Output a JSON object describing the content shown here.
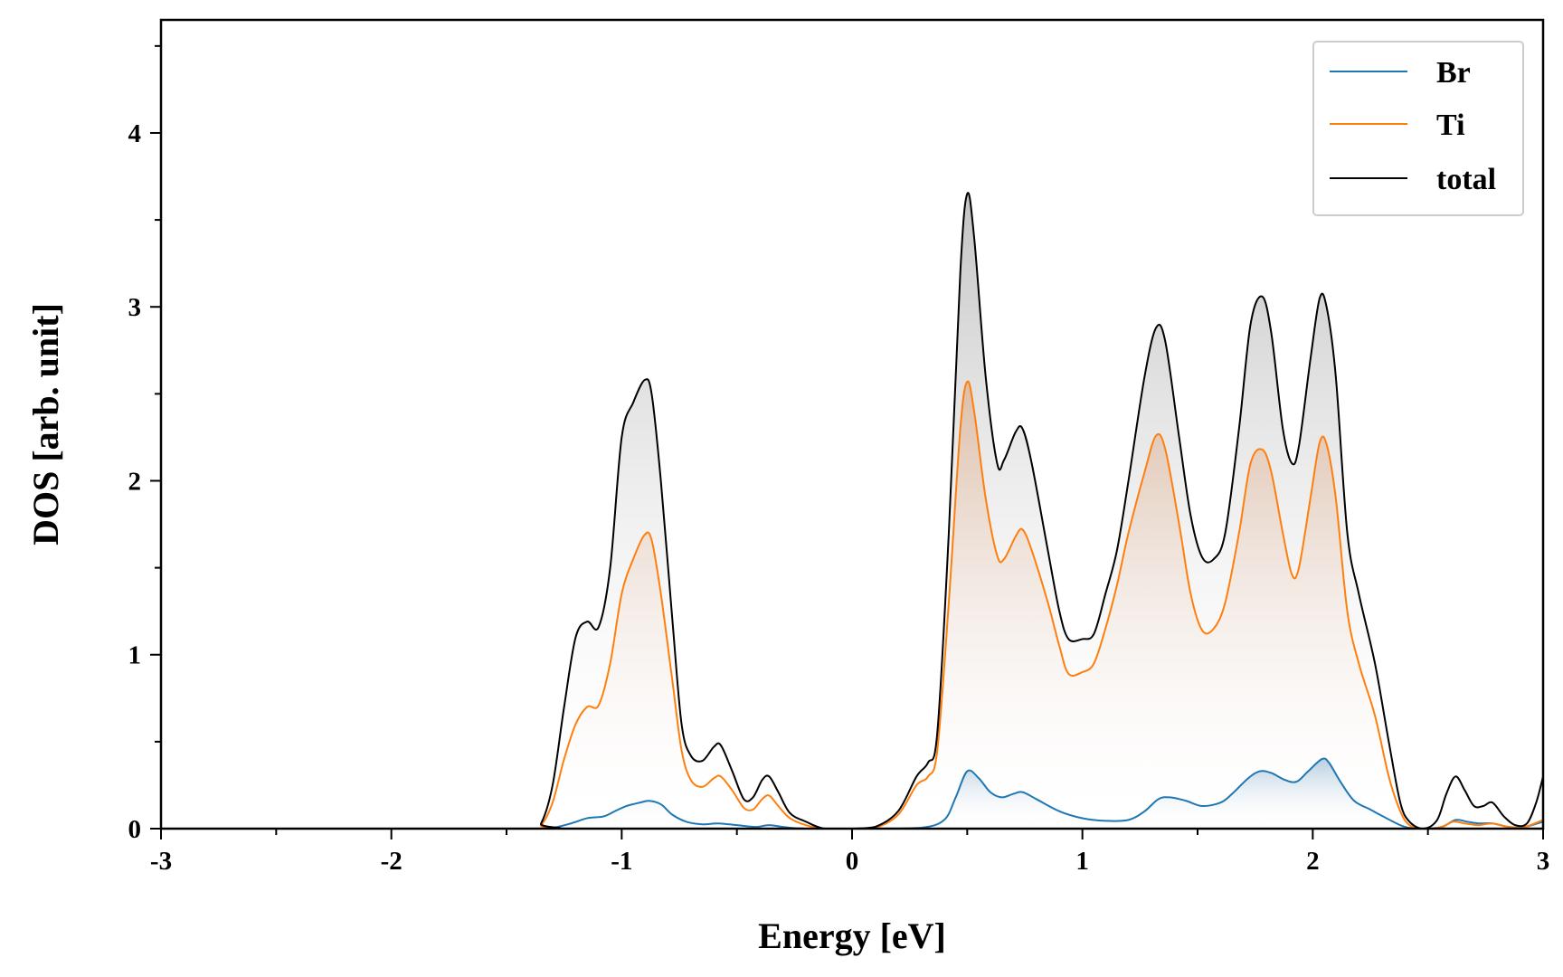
{
  "chart_data": {
    "type": "line",
    "xlabel": "Energy [eV]",
    "ylabel": "DOS [arb. unit]",
    "xlim": [
      -3,
      3
    ],
    "ylim": [
      0,
      4.65
    ],
    "x_ticks": [
      "-3",
      "-2",
      "-1",
      "0",
      "1",
      "2",
      "3"
    ],
    "y_ticks": [
      "0",
      "1",
      "2",
      "3",
      "4"
    ],
    "legend_position": "top-right",
    "grid": false,
    "filled": true,
    "series": [
      {
        "name": "Br",
        "color": "#1f77b4",
        "points": [
          [
            -3.0,
            0.0
          ],
          [
            -1.4,
            0.0
          ],
          [
            -1.3,
            0.005
          ],
          [
            -1.22,
            0.03
          ],
          [
            -1.15,
            0.06
          ],
          [
            -1.08,
            0.07
          ],
          [
            -1.03,
            0.1
          ],
          [
            -0.98,
            0.13
          ],
          [
            -0.92,
            0.15
          ],
          [
            -0.88,
            0.16
          ],
          [
            -0.83,
            0.14
          ],
          [
            -0.78,
            0.08
          ],
          [
            -0.72,
            0.04
          ],
          [
            -0.65,
            0.025
          ],
          [
            -0.58,
            0.03
          ],
          [
            -0.5,
            0.02
          ],
          [
            -0.42,
            0.01
          ],
          [
            -0.36,
            0.02
          ],
          [
            -0.3,
            0.01
          ],
          [
            -0.2,
            0.0
          ],
          [
            0.1,
            0.0
          ],
          [
            0.3,
            0.005
          ],
          [
            0.4,
            0.05
          ],
          [
            0.45,
            0.18
          ],
          [
            0.5,
            0.33
          ],
          [
            0.55,
            0.29
          ],
          [
            0.6,
            0.21
          ],
          [
            0.65,
            0.18
          ],
          [
            0.7,
            0.2
          ],
          [
            0.74,
            0.21
          ],
          [
            0.8,
            0.17
          ],
          [
            0.9,
            0.1
          ],
          [
            1.0,
            0.06
          ],
          [
            1.1,
            0.045
          ],
          [
            1.2,
            0.05
          ],
          [
            1.27,
            0.1
          ],
          [
            1.33,
            0.17
          ],
          [
            1.38,
            0.18
          ],
          [
            1.45,
            0.16
          ],
          [
            1.52,
            0.13
          ],
          [
            1.6,
            0.15
          ],
          [
            1.65,
            0.2
          ],
          [
            1.72,
            0.29
          ],
          [
            1.77,
            0.33
          ],
          [
            1.82,
            0.32
          ],
          [
            1.88,
            0.28
          ],
          [
            1.93,
            0.27
          ],
          [
            1.98,
            0.33
          ],
          [
            2.04,
            0.4
          ],
          [
            2.07,
            0.38
          ],
          [
            2.12,
            0.27
          ],
          [
            2.18,
            0.16
          ],
          [
            2.25,
            0.11
          ],
          [
            2.32,
            0.06
          ],
          [
            2.4,
            0.01
          ],
          [
            2.48,
            0.0
          ],
          [
            2.56,
            0.01
          ],
          [
            2.62,
            0.05
          ],
          [
            2.67,
            0.04
          ],
          [
            2.72,
            0.03
          ],
          [
            2.78,
            0.03
          ],
          [
            2.85,
            0.01
          ],
          [
            2.92,
            0.01
          ],
          [
            3.0,
            0.04
          ]
        ]
      },
      {
        "name": "Ti",
        "color": "#ff7f0e",
        "points": [
          [
            -3.0,
            0.0
          ],
          [
            -1.4,
            0.0
          ],
          [
            -1.35,
            0.02
          ],
          [
            -1.3,
            0.15
          ],
          [
            -1.25,
            0.4
          ],
          [
            -1.2,
            0.6
          ],
          [
            -1.15,
            0.7
          ],
          [
            -1.1,
            0.71
          ],
          [
            -1.05,
            0.95
          ],
          [
            -1.0,
            1.35
          ],
          [
            -0.95,
            1.55
          ],
          [
            -0.9,
            1.69
          ],
          [
            -0.87,
            1.66
          ],
          [
            -0.83,
            1.35
          ],
          [
            -0.78,
            0.85
          ],
          [
            -0.74,
            0.45
          ],
          [
            -0.7,
            0.28
          ],
          [
            -0.65,
            0.24
          ],
          [
            -0.6,
            0.29
          ],
          [
            -0.57,
            0.3
          ],
          [
            -0.52,
            0.22
          ],
          [
            -0.47,
            0.12
          ],
          [
            -0.43,
            0.11
          ],
          [
            -0.39,
            0.17
          ],
          [
            -0.36,
            0.19
          ],
          [
            -0.32,
            0.13
          ],
          [
            -0.27,
            0.06
          ],
          [
            -0.2,
            0.02
          ],
          [
            -0.12,
            0.0
          ],
          [
            0.0,
            0.0
          ],
          [
            0.1,
            0.005
          ],
          [
            0.2,
            0.08
          ],
          [
            0.28,
            0.25
          ],
          [
            0.33,
            0.3
          ],
          [
            0.37,
            0.45
          ],
          [
            0.42,
            1.3
          ],
          [
            0.47,
            2.3
          ],
          [
            0.5,
            2.57
          ],
          [
            0.53,
            2.4
          ],
          [
            0.58,
            1.9
          ],
          [
            0.63,
            1.57
          ],
          [
            0.66,
            1.55
          ],
          [
            0.71,
            1.68
          ],
          [
            0.74,
            1.72
          ],
          [
            0.78,
            1.6
          ],
          [
            0.85,
            1.3
          ],
          [
            0.9,
            1.05
          ],
          [
            0.94,
            0.89
          ],
          [
            1.0,
            0.9
          ],
          [
            1.05,
            0.95
          ],
          [
            1.1,
            1.15
          ],
          [
            1.15,
            1.4
          ],
          [
            1.2,
            1.7
          ],
          [
            1.27,
            2.05
          ],
          [
            1.32,
            2.26
          ],
          [
            1.36,
            2.18
          ],
          [
            1.42,
            1.75
          ],
          [
            1.47,
            1.35
          ],
          [
            1.52,
            1.14
          ],
          [
            1.57,
            1.15
          ],
          [
            1.62,
            1.3
          ],
          [
            1.68,
            1.7
          ],
          [
            1.73,
            2.1
          ],
          [
            1.78,
            2.18
          ],
          [
            1.82,
            2.05
          ],
          [
            1.87,
            1.7
          ],
          [
            1.91,
            1.46
          ],
          [
            1.94,
            1.5
          ],
          [
            1.99,
            1.9
          ],
          [
            2.03,
            2.22
          ],
          [
            2.06,
            2.21
          ],
          [
            2.1,
            1.9
          ],
          [
            2.15,
            1.25
          ],
          [
            2.2,
            0.95
          ],
          [
            2.27,
            0.65
          ],
          [
            2.33,
            0.3
          ],
          [
            2.38,
            0.1
          ],
          [
            2.42,
            0.02
          ],
          [
            2.48,
            0.0
          ],
          [
            2.56,
            0.01
          ],
          [
            2.61,
            0.04
          ],
          [
            2.66,
            0.03
          ],
          [
            2.72,
            0.02
          ],
          [
            2.78,
            0.03
          ],
          [
            2.85,
            0.01
          ],
          [
            2.92,
            0.01
          ],
          [
            3.0,
            0.05
          ]
        ]
      },
      {
        "name": "total",
        "color": "#000000",
        "points": [
          [
            -3.0,
            0.0
          ],
          [
            -1.4,
            0.0
          ],
          [
            -1.35,
            0.03
          ],
          [
            -1.3,
            0.25
          ],
          [
            -1.25,
            0.7
          ],
          [
            -1.2,
            1.1
          ],
          [
            -1.15,
            1.19
          ],
          [
            -1.1,
            1.16
          ],
          [
            -1.05,
            1.5
          ],
          [
            -1.0,
            2.25
          ],
          [
            -0.95,
            2.45
          ],
          [
            -0.9,
            2.58
          ],
          [
            -0.87,
            2.5
          ],
          [
            -0.83,
            2.0
          ],
          [
            -0.78,
            1.2
          ],
          [
            -0.74,
            0.6
          ],
          [
            -0.7,
            0.42
          ],
          [
            -0.65,
            0.39
          ],
          [
            -0.6,
            0.47
          ],
          [
            -0.57,
            0.48
          ],
          [
            -0.52,
            0.33
          ],
          [
            -0.47,
            0.17
          ],
          [
            -0.43,
            0.18
          ],
          [
            -0.39,
            0.28
          ],
          [
            -0.36,
            0.3
          ],
          [
            -0.32,
            0.21
          ],
          [
            -0.27,
            0.09
          ],
          [
            -0.2,
            0.04
          ],
          [
            -0.12,
            0.0
          ],
          [
            0.0,
            0.0
          ],
          [
            0.1,
            0.01
          ],
          [
            0.2,
            0.1
          ],
          [
            0.28,
            0.3
          ],
          [
            0.33,
            0.38
          ],
          [
            0.37,
            0.55
          ],
          [
            0.42,
            1.7
          ],
          [
            0.47,
            3.2
          ],
          [
            0.5,
            3.65
          ],
          [
            0.53,
            3.4
          ],
          [
            0.58,
            2.6
          ],
          [
            0.63,
            2.1
          ],
          [
            0.66,
            2.12
          ],
          [
            0.71,
            2.28
          ],
          [
            0.74,
            2.3
          ],
          [
            0.78,
            2.1
          ],
          [
            0.85,
            1.6
          ],
          [
            0.9,
            1.25
          ],
          [
            0.94,
            1.09
          ],
          [
            1.0,
            1.09
          ],
          [
            1.05,
            1.12
          ],
          [
            1.1,
            1.35
          ],
          [
            1.15,
            1.6
          ],
          [
            1.2,
            2.0
          ],
          [
            1.27,
            2.6
          ],
          [
            1.32,
            2.88
          ],
          [
            1.36,
            2.8
          ],
          [
            1.42,
            2.25
          ],
          [
            1.47,
            1.8
          ],
          [
            1.52,
            1.56
          ],
          [
            1.57,
            1.55
          ],
          [
            1.62,
            1.7
          ],
          [
            1.68,
            2.3
          ],
          [
            1.73,
            2.9
          ],
          [
            1.78,
            3.06
          ],
          [
            1.82,
            2.85
          ],
          [
            1.87,
            2.3
          ],
          [
            1.91,
            2.1
          ],
          [
            1.94,
            2.2
          ],
          [
            1.99,
            2.7
          ],
          [
            2.03,
            3.05
          ],
          [
            2.06,
            3.0
          ],
          [
            2.1,
            2.6
          ],
          [
            2.15,
            1.7
          ],
          [
            2.2,
            1.35
          ],
          [
            2.27,
            0.95
          ],
          [
            2.33,
            0.5
          ],
          [
            2.38,
            0.15
          ],
          [
            2.42,
            0.04
          ],
          [
            2.48,
            0.0
          ],
          [
            2.54,
            0.05
          ],
          [
            2.58,
            0.2
          ],
          [
            2.62,
            0.3
          ],
          [
            2.66,
            0.22
          ],
          [
            2.7,
            0.13
          ],
          [
            2.74,
            0.13
          ],
          [
            2.78,
            0.15
          ],
          [
            2.83,
            0.07
          ],
          [
            2.88,
            0.02
          ],
          [
            2.93,
            0.03
          ],
          [
            2.97,
            0.15
          ],
          [
            3.0,
            0.3
          ]
        ]
      }
    ]
  }
}
